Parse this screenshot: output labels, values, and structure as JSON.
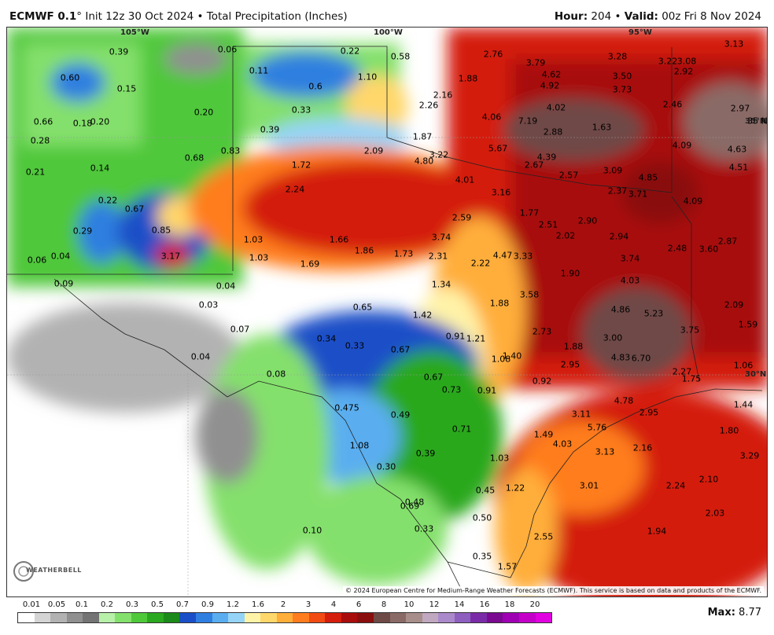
{
  "header": {
    "model": "ECMWF 0.1",
    "init": "° Init 12z 30 Oct 2024 • Total Precipitation (Inches)",
    "hour_label": "Hour:",
    "hour_value": "204",
    "sep": "•",
    "valid_label": "Valid:",
    "valid_value": "00z Fri 8 Nov 2024"
  },
  "map": {
    "lon_labels": [
      "105°W",
      "100°W",
      "95°W"
    ],
    "lat_labels": [
      "35°N",
      "30°N"
    ],
    "values": [
      "0.39",
      "0.06",
      "0.22",
      "0.58",
      "2.76",
      "3.79",
      "3.28",
      "3.22",
      "3.08",
      "3.13",
      "0.60",
      "0.15",
      "0.11",
      "1.10",
      "1.88",
      "4.62",
      "4.92",
      "3.50",
      "2.92",
      "0.66",
      "0.18",
      "0.20",
      "0.20",
      "0.33",
      "0.6",
      "2.26",
      "2.16",
      "4.02",
      "3.73",
      "2.46",
      "2.97",
      "0.28",
      "0.39",
      "1.87",
      "4.06",
      "7.19",
      "2.88",
      "1.63",
      "35 N",
      "0.21",
      "0.14",
      "0.83",
      "2.09",
      "4.80",
      "3.22",
      "5.67",
      "4.39",
      "2.67",
      "4.09",
      "4.63",
      "0.68",
      "1.72",
      "4.01",
      "2.57",
      "3.09",
      "4.85",
      "4.51",
      "0.22",
      "2.24",
      "3.16",
      "2.37",
      "3.71",
      "4.09",
      "0.67",
      "2.59",
      "1.77",
      "2.51",
      "2.90",
      "0.29",
      "0.85",
      "1.66",
      "3.74",
      "2.02",
      "2.94",
      "2.87",
      "0.06",
      "0.04",
      "3.17",
      "1.03",
      "1.03",
      "1.86",
      "1.73",
      "2.31",
      "2.22",
      "4.47",
      "3.33",
      "2.48",
      "3.60",
      "1.69",
      "1.90",
      "3.74",
      "0.09",
      "0.04",
      "1.34",
      "4.03",
      "0.03",
      "0.65",
      "1.88",
      "3.58",
      "2.09",
      "1.42",
      "4.86",
      "5.23",
      "1.59",
      "0.07",
      "0.34",
      "0.33",
      "0.91",
      "1.21",
      "2.73",
      "3.75",
      "0.04",
      "0.67",
      "1.08",
      "1.40",
      "1.88",
      "3.00",
      "4.83",
      "6.70",
      "1.06",
      "0.08",
      "2.95",
      "2.27",
      "1.75",
      "0.67",
      "0.73",
      "0.91",
      "0.92",
      "0.475",
      "0.49",
      "4.78",
      "2.95",
      "1.44",
      "0.71",
      "3.11",
      "5.76",
      "1.80",
      "1.08",
      "1.49",
      "4.03",
      "3.13",
      "2.16",
      "3.29",
      "0.39",
      "1.03",
      "3.01",
      "0.30",
      "2.24",
      "2.10",
      "0.45",
      "1.22",
      "0.48",
      "0.69",
      "2.03",
      "0.50",
      "0.33",
      "1.94",
      "0.10",
      "2.55",
      "0.35",
      "1.57"
    ],
    "credit": "© 2024 European Centre for Medium-Range Weather Forecasts (ECMWF). This service is based on data and products of the ECMWF.",
    "logo_text": "WEATHERBELL"
  },
  "legend": {
    "ticks": [
      "0.01",
      "0.05",
      "0.1",
      "0.2",
      "0.3",
      "0.5",
      "0.7",
      "0.9",
      "1.2",
      "1.6",
      "2",
      "3",
      "4",
      "6",
      "8",
      "10",
      "12",
      "14",
      "16",
      "18",
      "20"
    ],
    "colors": [
      "#ffffff",
      "#d4d4d4",
      "#b2b2b2",
      "#909090",
      "#747474",
      "#b7f0a8",
      "#84e06c",
      "#4fc83a",
      "#2aa81f",
      "#1b8a1a",
      "#1b4fc7",
      "#2f7fe0",
      "#5aaef0",
      "#96d4f7",
      "#fff3a8",
      "#ffd76a",
      "#ffae3a",
      "#ff7d1f",
      "#f24a13",
      "#d41d0b",
      "#a80d0b",
      "#8a0e0e",
      "#6e4a46",
      "#8a6a66",
      "#a88e8a",
      "#c0a8c0",
      "#ab8acb",
      "#8d5fbf",
      "#7a2ca8",
      "#7a0a90",
      "#a000b4",
      "#c400c8",
      "#e000e0"
    ],
    "max_label": "Max:",
    "max_value": "8.77"
  }
}
